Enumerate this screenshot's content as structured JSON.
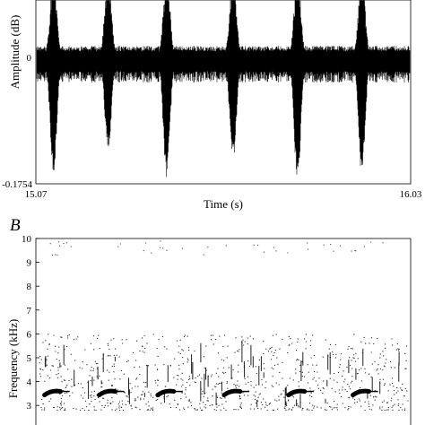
{
  "chart_data": [
    {
      "type": "line",
      "panel": "",
      "ylabel": "Amplitude (dB)",
      "xlabel": "Time (s)",
      "xlim": [
        15.07,
        16.03
      ],
      "ylim": [
        -0.1754,
        0.1754
      ],
      "y_tick_labels": [
        "0",
        "-0.1754"
      ],
      "x_tick_labels": [
        "15.07",
        "16.03"
      ],
      "pulses": [
        {
          "t": 15.115,
          "min": -0.165
        },
        {
          "t": 15.255,
          "min": -0.135
        },
        {
          "t": 15.405,
          "min": -0.172
        },
        {
          "t": 15.575,
          "min": -0.15
        },
        {
          "t": 15.74,
          "min": -0.175
        },
        {
          "t": 15.905,
          "min": -0.165
        }
      ],
      "noise_level": 0.035
    },
    {
      "type": "scatter",
      "panel": "B",
      "ylabel": "Frequency (kHz)",
      "xlabel": "",
      "xlim": [
        15.07,
        16.03
      ],
      "ylim": [
        2.7,
        10
      ],
      "y_ticks": [
        "3",
        "4",
        "5",
        "6",
        "7",
        "8",
        "9",
        "10"
      ],
      "call_centers": [
        15.115,
        15.255,
        15.405,
        15.575,
        15.74,
        15.905
      ],
      "call_frequency_khz": 3.55,
      "noise_band_khz": [
        2.8,
        6.0
      ]
    }
  ]
}
